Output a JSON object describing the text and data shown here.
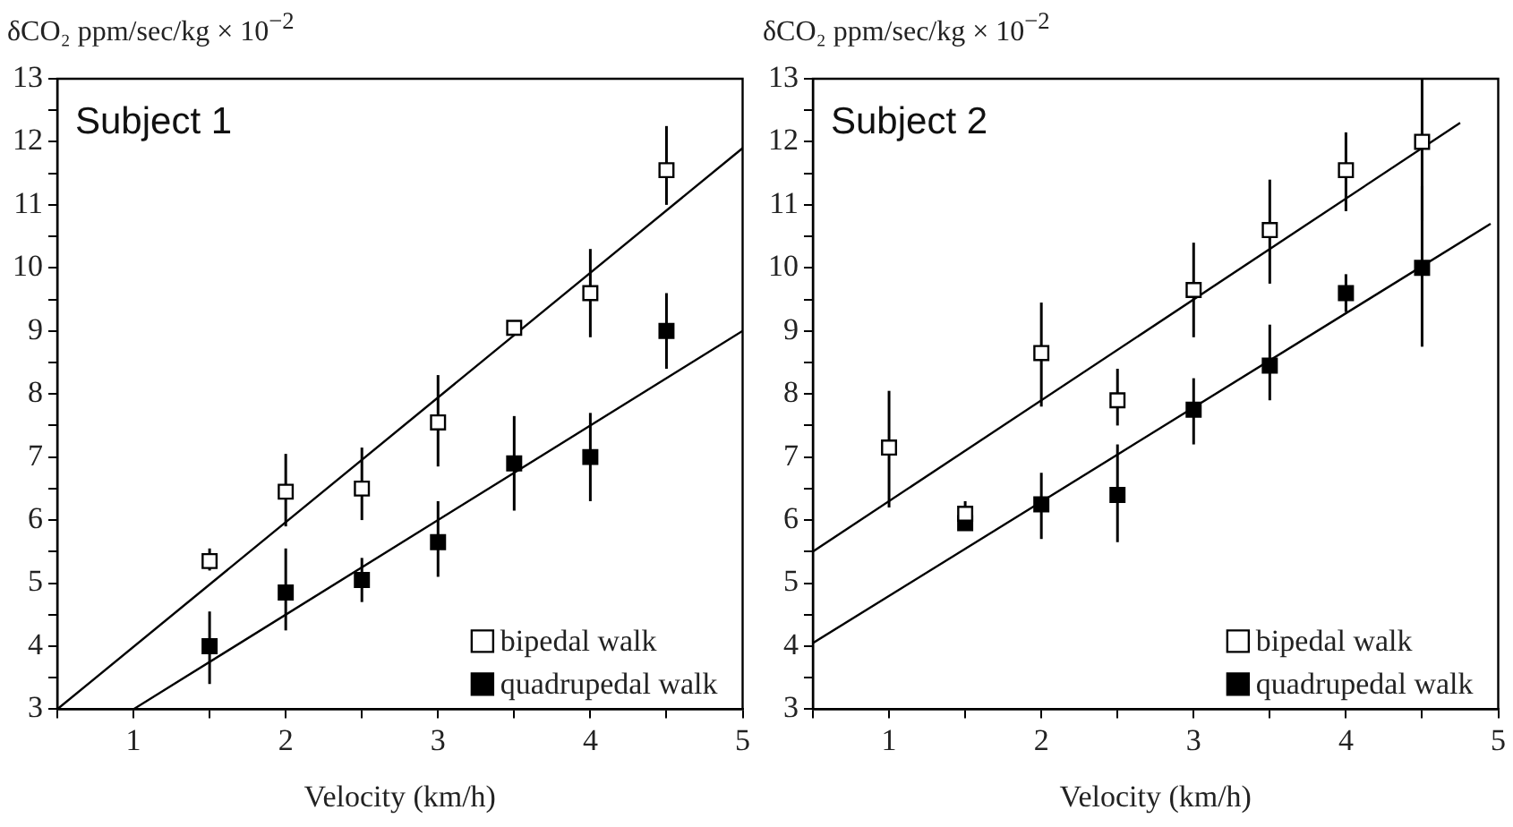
{
  "chart_data": [
    {
      "type": "scatter",
      "title": "Subject 1",
      "ylabel": "δCO₂ ppm/sec/kg × 10$^{−2}$",
      "xlabel": "Velocity (km/h)",
      "xlim": [
        0.5,
        5
      ],
      "xticks": [
        {
          "value": 0.5,
          "label": null
        },
        1,
        {
          "value": 1.5,
          "label": null
        },
        2,
        {
          "value": 2.5,
          "label": null
        },
        3,
        {
          "value": 3.5,
          "label": null
        },
        4,
        {
          "value": 4.5,
          "label": null
        },
        5
      ],
      "ylim": [
        3,
        13
      ],
      "yticks": [
        3,
        {
          "value": 3.5,
          "label": null
        },
        4,
        {
          "value": 4.5,
          "label": null
        },
        5,
        {
          "value": 5.5,
          "label": null
        },
        6,
        {
          "value": 6.5,
          "label": null
        },
        7,
        {
          "value": 7.5,
          "label": null
        },
        8,
        {
          "value": 8.5,
          "label": null
        },
        9,
        {
          "value": 9.5,
          "label": null
        },
        10,
        {
          "value": 10.5,
          "label": null
        },
        11,
        {
          "value": 11.5,
          "label": null
        },
        12,
        {
          "value": 12.5,
          "label": null
        },
        13
      ],
      "grid": false,
      "legend": "bottom right",
      "marker": "square",
      "series": [
        {
          "name": "bipedal walk",
          "type": "scatter",
          "color": "#ffffff",
          "x": [
            1.5,
            2,
            2.5,
            3,
            3.5,
            4,
            4.5
          ],
          "values": [
            5.35,
            6.45,
            6.5,
            7.55,
            9.05,
            9.6,
            11.55
          ],
          "errors": [
            [
              5.2,
              5.55
            ],
            [
              5.9,
              7.05
            ],
            [
              6.0,
              7.15
            ],
            [
              6.85,
              8.3
            ],
            null,
            [
              8.9,
              10.3
            ],
            [
              11.0,
              12.25
            ]
          ]
        },
        {
          "name": "quadrupedal walk",
          "type": "scatter",
          "color": "#000000",
          "x": [
            1.5,
            2,
            2.5,
            3,
            3.5,
            4,
            4.5
          ],
          "values": [
            4.0,
            4.85,
            5.05,
            5.65,
            6.9,
            7.0,
            9.0
          ],
          "errors": [
            [
              3.4,
              4.55
            ],
            [
              4.25,
              5.55
            ],
            [
              4.7,
              5.4
            ],
            [
              5.1,
              6.3
            ],
            [
              6.15,
              7.65
            ],
            [
              6.3,
              7.7
            ],
            [
              8.4,
              9.6
            ]
          ]
        },
        {
          "type": "line",
          "color": "#000000",
          "marker": "none",
          "x": [
            0.5,
            5
          ],
          "values": [
            3,
            11.9
          ]
        },
        {
          "type": "line",
          "color": "#000000",
          "marker": "none",
          "x": [
            1,
            5
          ],
          "values": [
            3,
            9.0
          ]
        }
      ]
    },
    {
      "type": "scatter",
      "title": "Subject 2",
      "ylabel": "δCO₂ ppm/sec/kg × 10$^{−2}$",
      "xlabel": "Velocity (km/h)",
      "xlim": [
        0.5,
        5
      ],
      "xticks": [
        {
          "value": 0.5,
          "label": null
        },
        1,
        {
          "value": 1.5,
          "label": null
        },
        2,
        {
          "value": 2.5,
          "label": null
        },
        3,
        {
          "value": 3.5,
          "label": null
        },
        4,
        {
          "value": 4.5,
          "label": null
        },
        5
      ],
      "ylim": [
        3,
        13
      ],
      "yticks": [
        3,
        {
          "value": 3.5,
          "label": null
        },
        4,
        {
          "value": 4.5,
          "label": null
        },
        5,
        {
          "value": 5.5,
          "label": null
        },
        6,
        {
          "value": 6.5,
          "label": null
        },
        7,
        {
          "value": 7.5,
          "label": null
        },
        8,
        {
          "value": 8.5,
          "label": null
        },
        9,
        {
          "value": 9.5,
          "label": null
        },
        10,
        {
          "value": 10.5,
          "label": null
        },
        11,
        {
          "value": 11.5,
          "label": null
        },
        12,
        {
          "value": 12.5,
          "label": null
        },
        13
      ],
      "grid": false,
      "legend": "bottom right",
      "marker": "square",
      "series": [
        {
          "name": "bipedal walk",
          "type": "scatter",
          "color": "#ffffff",
          "x": [
            1,
            1.5,
            2,
            2.5,
            3,
            3.5,
            4,
            4.5
          ],
          "values": [
            7.15,
            6.1,
            8.65,
            7.9,
            9.65,
            10.6,
            11.55,
            12.0
          ],
          "errors": [
            [
              6.2,
              8.05
            ],
            [
              5.9,
              6.3
            ],
            [
              7.8,
              9.45
            ],
            [
              7.5,
              8.4
            ],
            [
              8.9,
              10.4
            ],
            [
              9.75,
              11.4
            ],
            [
              10.9,
              12.15
            ],
            [
              10.75,
              13
            ]
          ]
        },
        {
          "name": "quadrupedal walk",
          "type": "scatter",
          "color": "#000000",
          "x": [
            1.5,
            2,
            2.5,
            3,
            3.5,
            4,
            4.5
          ],
          "values": [
            5.95,
            6.25,
            6.4,
            7.75,
            8.45,
            9.6,
            10.0
          ],
          "errors": [
            [
              5.85,
              6.1
            ],
            [
              5.7,
              6.75
            ],
            [
              5.65,
              7.2
            ],
            [
              7.2,
              8.25
            ],
            [
              7.9,
              9.1
            ],
            [
              9.3,
              9.9
            ],
            [
              8.75,
              11.3
            ]
          ]
        },
        {
          "type": "line",
          "color": "#000000",
          "marker": "none",
          "x": [
            0.5,
            4.75
          ],
          "values": [
            5.5,
            12.3
          ]
        },
        {
          "type": "line",
          "color": "#000000",
          "marker": "none",
          "x": [
            0.5,
            4.95
          ],
          "values": [
            4.05,
            10.7
          ]
        }
      ]
    }
  ]
}
